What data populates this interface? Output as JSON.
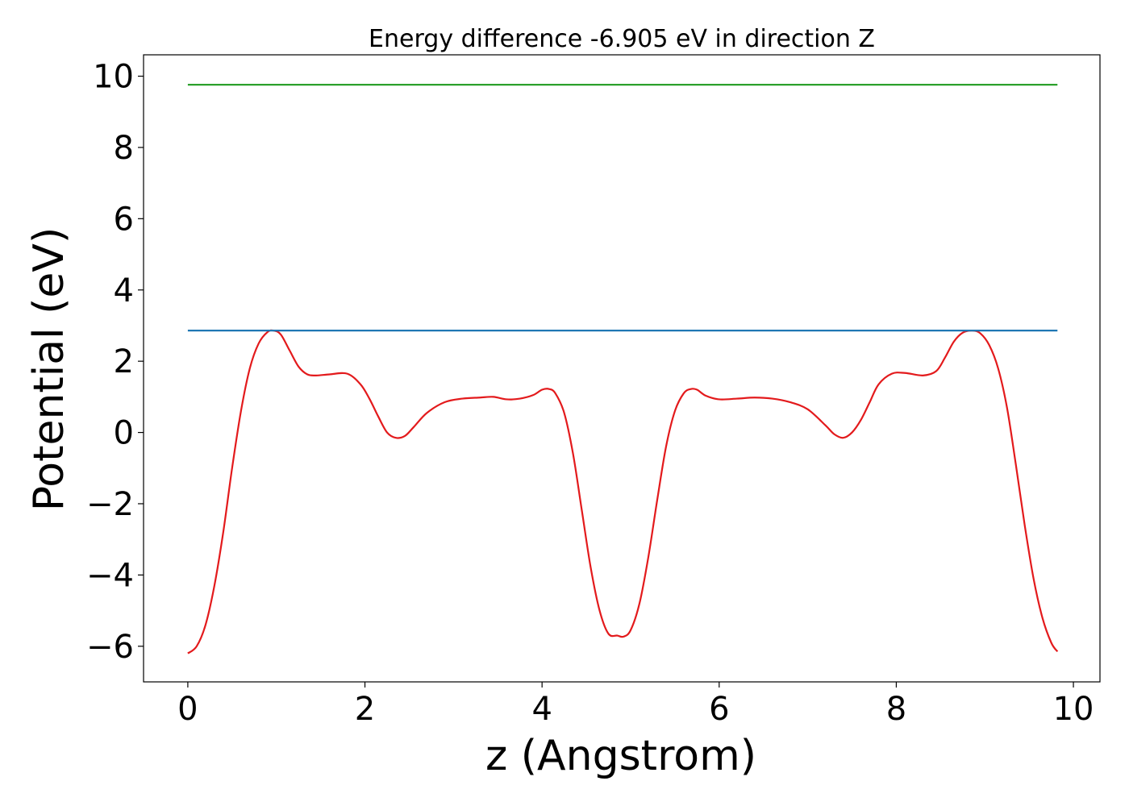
{
  "chart_data": {
    "type": "line",
    "title": "Energy difference -6.905 eV in direction Z",
    "xlabel": "z (Angstrom)",
    "ylabel": "Potential (eV)",
    "xlim": [
      -0.5,
      10.3
    ],
    "ylim": [
      -7.0,
      10.6
    ],
    "xticks": [
      0,
      2,
      4,
      6,
      8,
      10
    ],
    "yticks": [
      -6,
      -4,
      -2,
      0,
      2,
      4,
      6,
      8,
      10
    ],
    "xtick_labels": [
      "0",
      "2",
      "4",
      "6",
      "8",
      "10"
    ],
    "ytick_labels": [
      "−6",
      "−4",
      "−2",
      "0",
      "2",
      "4",
      "6",
      "8",
      "10"
    ],
    "grid": false,
    "legend": "none",
    "series": [
      {
        "color": "#e31a1c",
        "x": [
          0.0,
          0.1,
          0.2,
          0.3,
          0.4,
          0.5,
          0.6,
          0.7,
          0.8,
          0.9,
          0.97,
          1.05,
          1.15,
          1.25,
          1.35,
          1.45,
          1.6,
          1.8,
          1.95,
          2.05,
          2.15,
          2.25,
          2.35,
          2.45,
          2.55,
          2.7,
          2.9,
          3.1,
          3.3,
          3.45,
          3.6,
          3.75,
          3.9,
          4.0,
          4.08,
          4.15,
          4.25,
          4.35,
          4.45,
          4.55,
          4.65,
          4.75,
          4.85,
          4.92,
          5.0,
          5.1,
          5.2,
          5.3,
          5.4,
          5.5,
          5.6,
          5.68,
          5.75,
          5.85,
          6.0,
          6.2,
          6.4,
          6.6,
          6.8,
          7.0,
          7.2,
          7.3,
          7.4,
          7.5,
          7.6,
          7.7,
          7.8,
          7.95,
          8.1,
          8.3,
          8.45,
          8.55,
          8.65,
          8.75,
          8.86,
          8.95,
          9.05,
          9.15,
          9.25,
          9.35,
          9.45,
          9.55,
          9.65,
          9.75,
          9.82
        ],
        "values": [
          -6.2,
          -6.0,
          -5.4,
          -4.3,
          -2.8,
          -1.0,
          0.6,
          1.8,
          2.5,
          2.82,
          2.86,
          2.75,
          2.3,
          1.85,
          1.63,
          1.6,
          1.63,
          1.65,
          1.35,
          0.95,
          0.45,
          0.0,
          -0.15,
          -0.1,
          0.15,
          0.55,
          0.85,
          0.95,
          0.98,
          1.0,
          0.93,
          0.95,
          1.05,
          1.2,
          1.22,
          1.1,
          0.55,
          -0.6,
          -2.2,
          -3.8,
          -5.0,
          -5.65,
          -5.7,
          -5.73,
          -5.55,
          -4.8,
          -3.5,
          -1.9,
          -0.4,
          0.6,
          1.1,
          1.22,
          1.2,
          1.03,
          0.93,
          0.95,
          0.98,
          0.95,
          0.85,
          0.65,
          0.2,
          -0.05,
          -0.15,
          0.0,
          0.35,
          0.85,
          1.35,
          1.65,
          1.67,
          1.6,
          1.72,
          2.1,
          2.55,
          2.8,
          2.86,
          2.78,
          2.45,
          1.8,
          0.7,
          -0.9,
          -2.6,
          -4.1,
          -5.2,
          -5.9,
          -6.15
        ]
      },
      {
        "color": "#1f77b4",
        "x": [
          0.0,
          9.82
        ],
        "values": [
          2.86,
          2.86
        ]
      },
      {
        "color": "#2ca02c",
        "x": [
          0.0,
          9.82
        ],
        "values": [
          9.76,
          9.76
        ]
      }
    ]
  }
}
